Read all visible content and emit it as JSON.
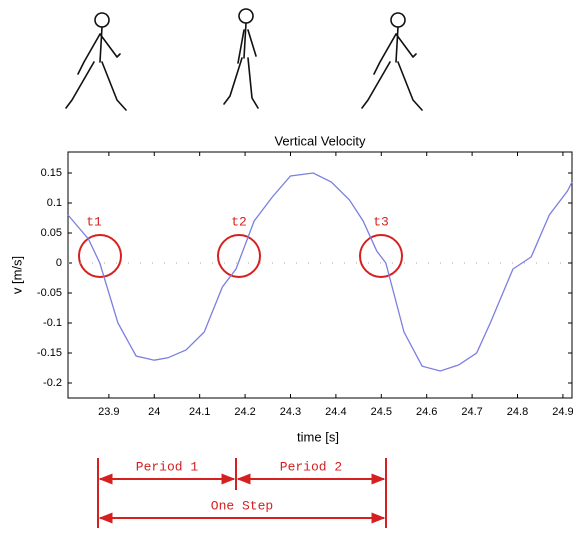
{
  "chart_data": {
    "type": "line",
    "title": "Vertical Velocity",
    "x_label": "time [s]",
    "y_label": "v [m/s]",
    "x": [
      23.81,
      23.855,
      23.88,
      23.92,
      23.96,
      24.0,
      24.03,
      24.07,
      24.11,
      24.15,
      24.18,
      24.22,
      24.26,
      24.3,
      24.35,
      24.39,
      24.43,
      24.46,
      24.49,
      24.51,
      24.55,
      24.59,
      24.63,
      24.67,
      24.71,
      24.74,
      24.79,
      24.83,
      24.87,
      24.91,
      24.92
    ],
    "series": [
      {
        "color": "#7b7fe0",
        "values": [
          0.08,
          0.04,
          0.0,
          -0.1,
          -0.155,
          -0.162,
          -0.158,
          -0.145,
          -0.115,
          -0.04,
          -0.01,
          0.07,
          0.11,
          0.145,
          0.15,
          0.135,
          0.105,
          0.07,
          0.02,
          0.0,
          -0.115,
          -0.172,
          -0.18,
          -0.17,
          -0.15,
          -0.1,
          -0.01,
          0.01,
          0.08,
          0.12,
          0.135
        ]
      }
    ],
    "xlim": [
      23.81,
      24.92
    ],
    "ylim": [
      -0.225,
      0.185
    ],
    "xticks": [
      23.9,
      24,
      24.1,
      24.2,
      24.3,
      24.4,
      24.5,
      24.6,
      24.7,
      24.8,
      24.9
    ],
    "yticks": [
      0.15,
      0.1,
      0.05,
      0,
      -0.05,
      -0.1,
      -0.15,
      -0.2
    ],
    "annotations": {
      "t1": "t1",
      "t2": "t2",
      "t3": "t3",
      "period1": "Period 1",
      "period2": "Period 2",
      "one_step": "One Step"
    }
  }
}
